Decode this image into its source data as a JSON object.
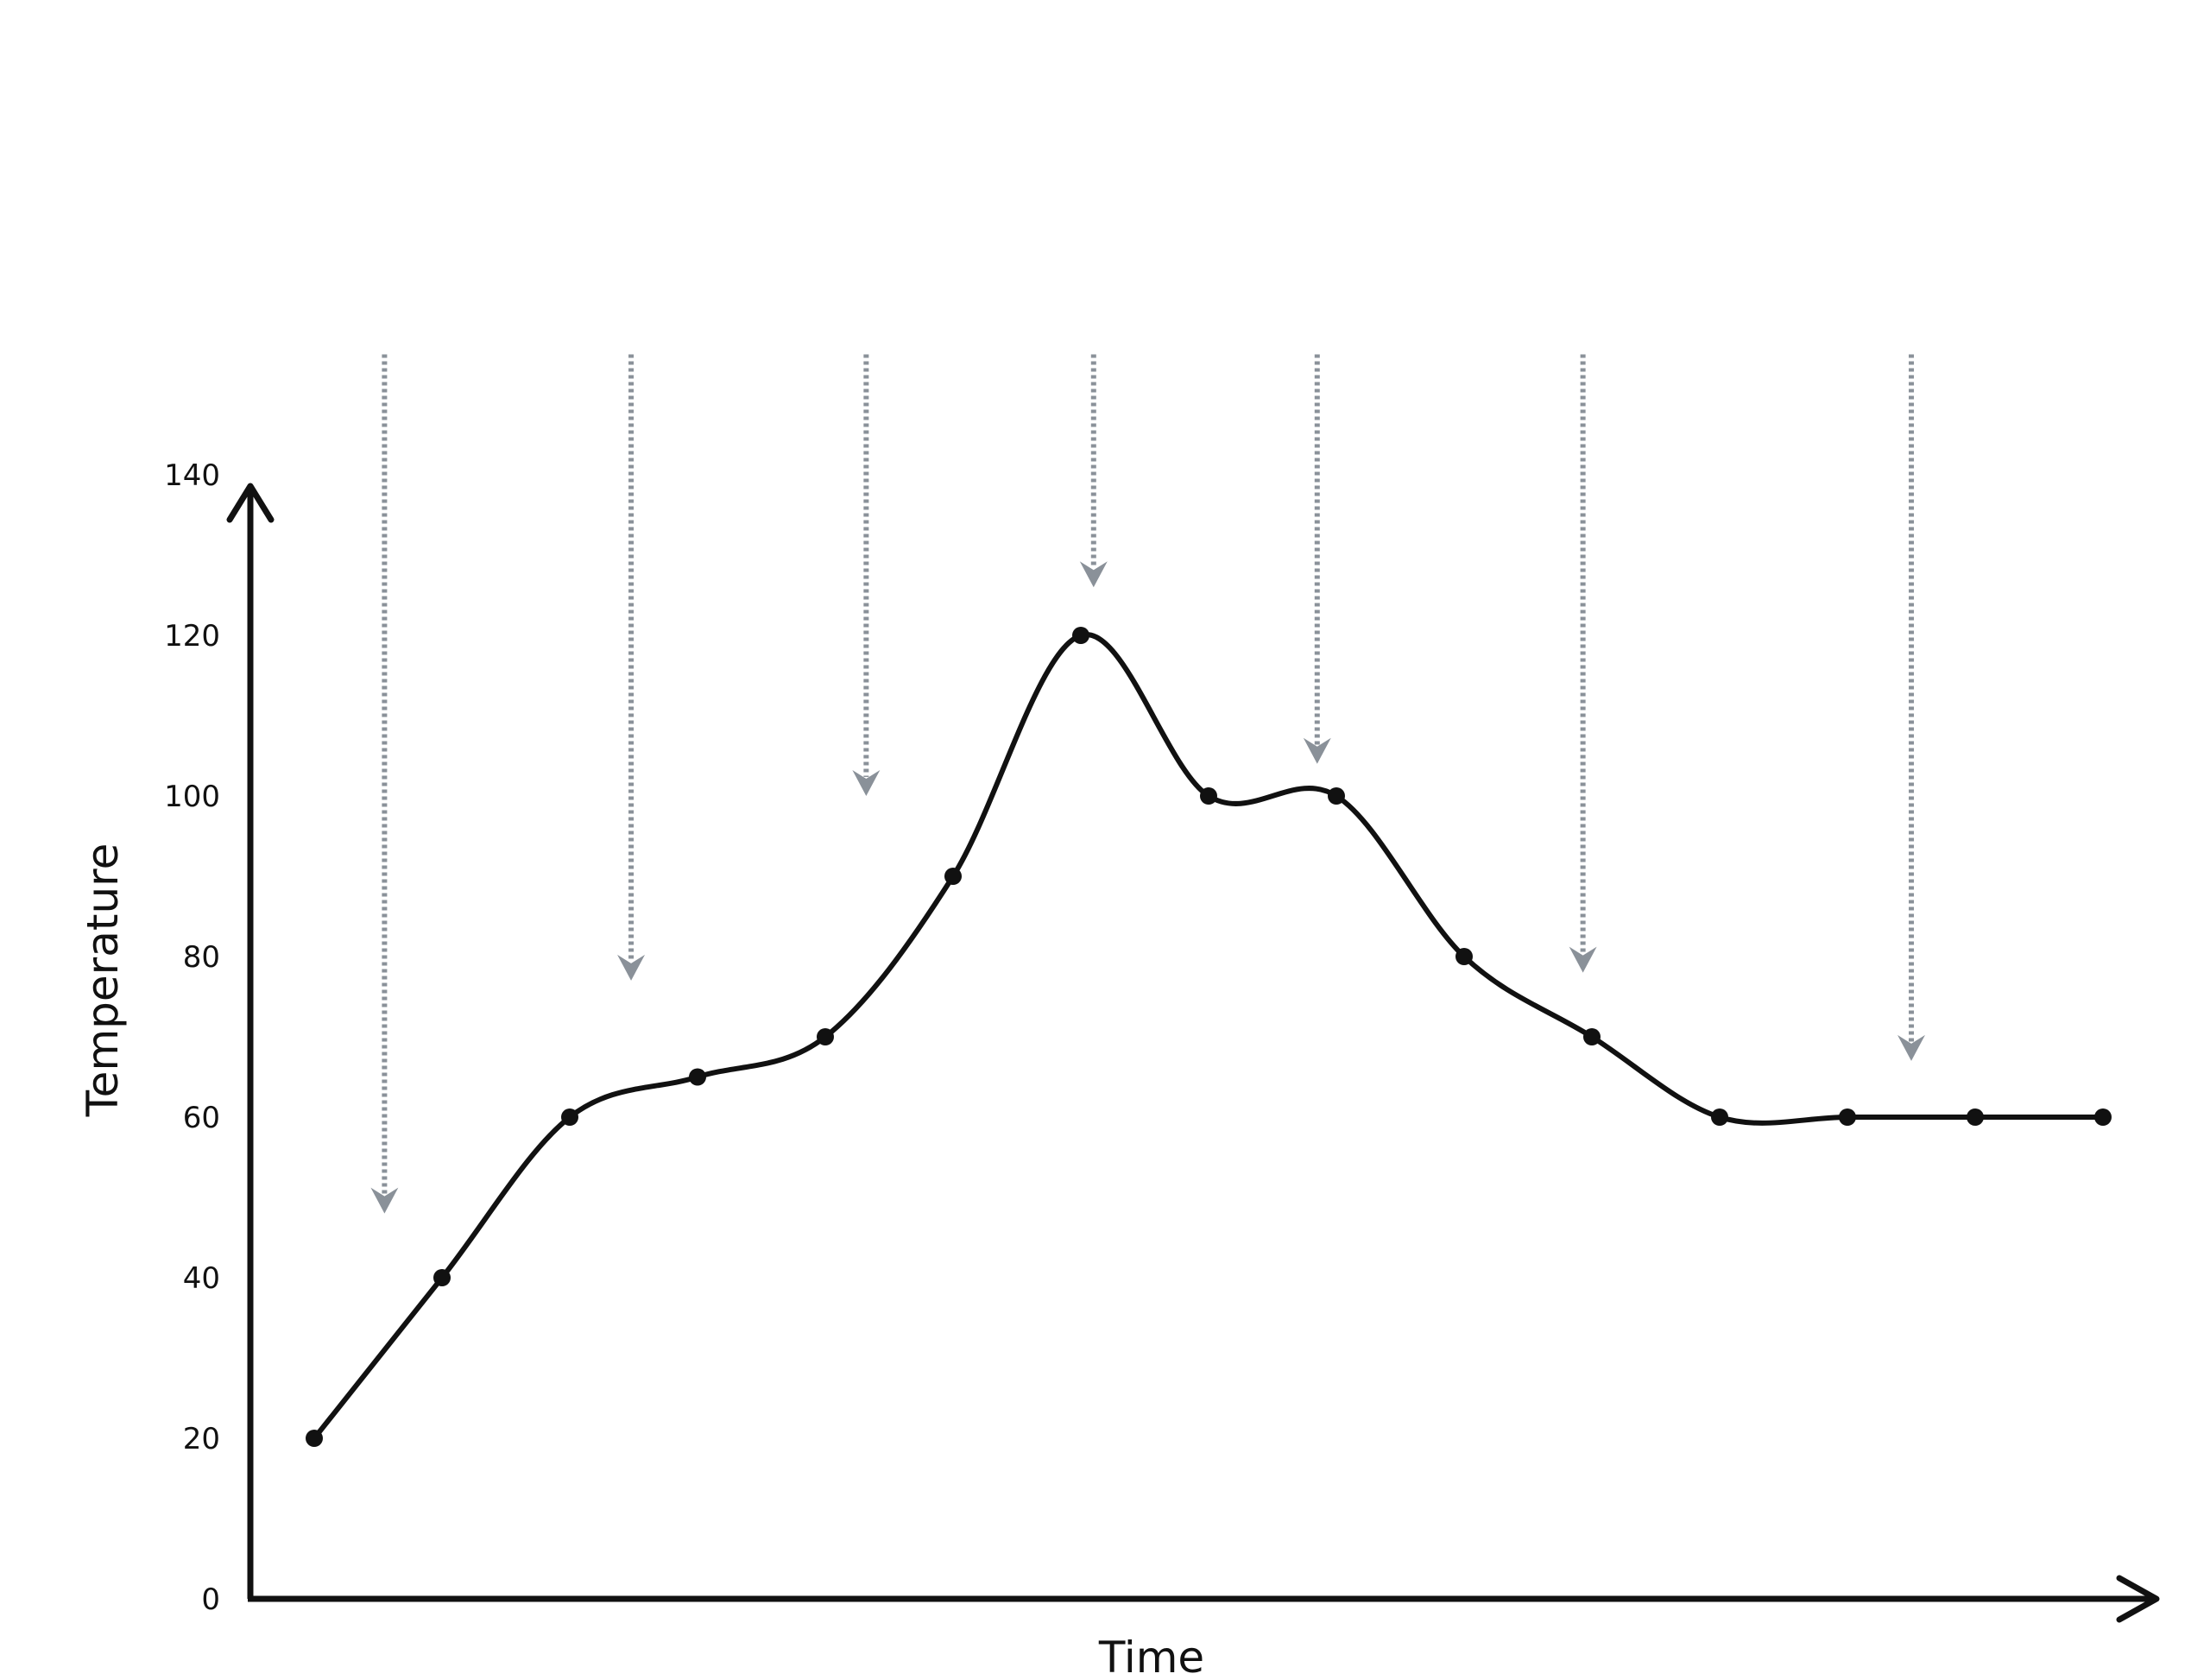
{
  "chart_data": {
    "type": "line",
    "xlabel": "Time",
    "ylabel": "Temperature",
    "ylim": [
      0,
      140
    ],
    "yticks": [
      0,
      20,
      40,
      60,
      80,
      100,
      120,
      140
    ],
    "series": [
      {
        "x": [
          1,
          2,
          3,
          4,
          5,
          6,
          7,
          8,
          9,
          10,
          11,
          12,
          13,
          14,
          15
        ],
        "values": [
          20,
          40,
          60,
          65,
          70,
          90,
          120,
          100,
          100,
          80,
          70,
          60,
          60,
          60,
          60
        ],
        "color": "#111111"
      }
    ],
    "annotation_arrows": [
      {
        "x": 1.55,
        "start": 155,
        "end": 48
      },
      {
        "x": 3.48,
        "start": 155,
        "end": 77
      },
      {
        "x": 5.32,
        "start": 155,
        "end": 100
      },
      {
        "x": 7.1,
        "start": 155,
        "end": 126
      },
      {
        "x": 8.85,
        "start": 155,
        "end": 104
      },
      {
        "x": 10.93,
        "start": 155,
        "end": 78
      },
      {
        "x": 13.5,
        "start": 155,
        "end": 67
      }
    ],
    "arrow_color": "#8a9199",
    "grid": false,
    "legend": "none"
  }
}
